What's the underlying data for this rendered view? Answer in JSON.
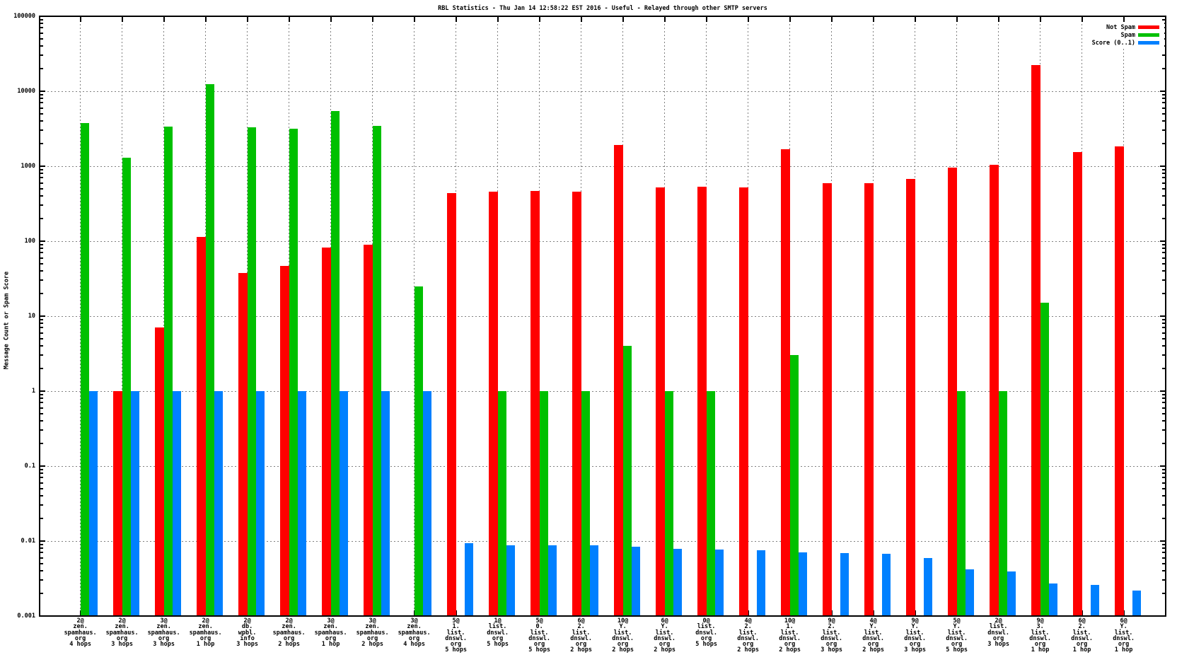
{
  "title": "RBL Statistics - Thu Jan 14 12:58:22 EST 2016 - Useful - Relayed through other SMTP servers",
  "y_axis_title": "Message Count or Spam Score",
  "colors": {
    "not_spam": "#ff0000",
    "spam": "#00c000",
    "score": "#0080ff",
    "grid": "#808080",
    "border": "#000000",
    "background": "#ffffff",
    "text": "#000000"
  },
  "legend": {
    "entries": [
      {
        "label": "Not Spam",
        "color": "#ff0000"
      },
      {
        "label": "Spam",
        "color": "#00c000"
      },
      {
        "label": "Score (0..1)",
        "color": "#0080ff"
      }
    ],
    "position": "top-right"
  },
  "chart_data": {
    "type": "bar",
    "title": "RBL Statistics - Thu Jan 14 12:58:22 EST 2016 - Useful - Relayed through other SMTP servers",
    "xlabel": "",
    "ylabel": "Message Count or Spam Score",
    "y_scale": "log10",
    "ylim": [
      0.001,
      100000
    ],
    "y_tick_labels": [
      "100000",
      "10000",
      "1000",
      "100",
      "10",
      "1",
      "0.1",
      "0.01",
      "0.001"
    ],
    "grid": true,
    "legend_position": "top-right inside",
    "categories": [
      [
        "2@",
        "zen.",
        "spamhaus.",
        "org",
        "4 hops"
      ],
      [
        "2@",
        "zen.",
        "spamhaus.",
        "org",
        "3 hops"
      ],
      [
        "3@",
        "zen.",
        "spamhaus.",
        "org",
        "3 hops"
      ],
      [
        "2@",
        "zen.",
        "spamhaus.",
        "org",
        "1 hop"
      ],
      [
        "2@",
        "db.",
        "wpbl.",
        "info",
        "3 hops"
      ],
      [
        "2@",
        "zen.",
        "spamhaus.",
        "org",
        "2 hops"
      ],
      [
        "3@",
        "zen.",
        "spamhaus.",
        "org",
        "1 hop"
      ],
      [
        "3@",
        "zen.",
        "spamhaus.",
        "org",
        "2 hops"
      ],
      [
        "3@",
        "zen.",
        "spamhaus.",
        "org",
        "4 hops"
      ],
      [
        "5@",
        "1.",
        "list.",
        "dnswl.",
        "org",
        "5 hops"
      ],
      [
        "1@",
        "list.",
        "dnswl.",
        "org",
        "5 hops"
      ],
      [
        "5@",
        "0.",
        "list.",
        "dnswl.",
        "org",
        "5 hops"
      ],
      [
        "6@",
        "2.",
        "list.",
        "dnswl.",
        "org",
        "2 hops"
      ],
      [
        "10@",
        "Y.",
        "list.",
        "dnswl.",
        "org",
        "2 hops"
      ],
      [
        "6@",
        "Y.",
        "list.",
        "dnswl.",
        "org",
        "2 hops"
      ],
      [
        "0@",
        "list.",
        "dnswl.",
        "org",
        "5 hops"
      ],
      [
        "4@",
        "2.",
        "list.",
        "dnswl.",
        "org",
        "2 hops"
      ],
      [
        "10@",
        "1.",
        "list.",
        "dnswl.",
        "org",
        "2 hops"
      ],
      [
        "9@",
        "2.",
        "list.",
        "dnswl.",
        "org",
        "3 hops"
      ],
      [
        "4@",
        "Y.",
        "list.",
        "dnswl.",
        "org",
        "2 hops"
      ],
      [
        "9@",
        "Y.",
        "list.",
        "dnswl.",
        "org",
        "3 hops"
      ],
      [
        "5@",
        "Y.",
        "list.",
        "dnswl.",
        "org",
        "5 hops"
      ],
      [
        "2@",
        "list.",
        "dnswl.",
        "org",
        "3 hops"
      ],
      [
        "9@",
        "3.",
        "list.",
        "dnswl.",
        "org",
        "1 hop"
      ],
      [
        "6@",
        "2.",
        "list.",
        "dnswl.",
        "org",
        "1 hop"
      ],
      [
        "6@",
        "Y.",
        "list.",
        "dnswl.",
        "org",
        "1 hop"
      ]
    ],
    "series": [
      {
        "name": "Not Spam",
        "color": "#ff0000",
        "values": [
          0,
          1,
          7,
          115,
          38,
          47,
          83,
          90,
          0,
          440,
          455,
          465,
          460,
          1900,
          520,
          530,
          525,
          1700,
          590,
          590,
          680,
          950,
          1050,
          22500,
          1550,
          1850
        ]
      },
      {
        "name": "Spam",
        "color": "#00c000",
        "values": [
          3800,
          1300,
          3350,
          12300,
          3300,
          3150,
          5400,
          3450,
          25,
          0,
          1,
          1,
          1,
          4,
          1,
          1,
          0,
          3,
          0,
          0,
          0,
          1,
          1,
          15,
          0,
          0
        ]
      },
      {
        "name": "Score (0..1)",
        "color": "#0080ff",
        "values": [
          1.0,
          1.0,
          1.0,
          1.0,
          1.0,
          1.0,
          1.0,
          1.0,
          1.0,
          0.0093,
          0.0088,
          0.0087,
          0.0087,
          0.0084,
          0.0079,
          0.0077,
          0.0075,
          0.0071,
          0.0069,
          0.0067,
          0.0059,
          0.0042,
          0.0039,
          0.0027,
          0.0026,
          0.0022
        ]
      }
    ]
  }
}
